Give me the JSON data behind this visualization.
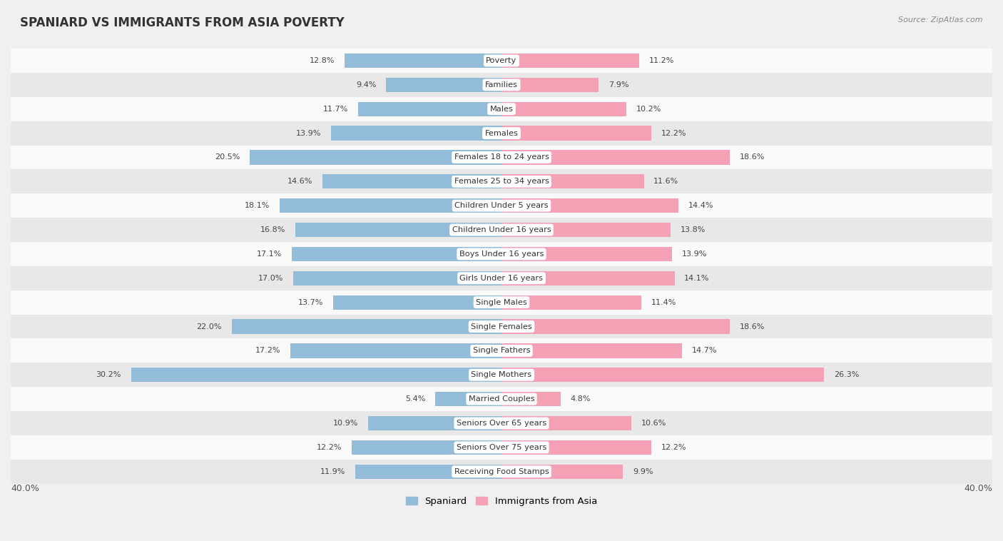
{
  "title": "SPANIARD VS IMMIGRANTS FROM ASIA POVERTY",
  "source": "Source: ZipAtlas.com",
  "categories": [
    "Poverty",
    "Families",
    "Males",
    "Females",
    "Females 18 to 24 years",
    "Females 25 to 34 years",
    "Children Under 5 years",
    "Children Under 16 years",
    "Boys Under 16 years",
    "Girls Under 16 years",
    "Single Males",
    "Single Females",
    "Single Fathers",
    "Single Mothers",
    "Married Couples",
    "Seniors Over 65 years",
    "Seniors Over 75 years",
    "Receiving Food Stamps"
  ],
  "spaniard": [
    12.8,
    9.4,
    11.7,
    13.9,
    20.5,
    14.6,
    18.1,
    16.8,
    17.1,
    17.0,
    13.7,
    22.0,
    17.2,
    30.2,
    5.4,
    10.9,
    12.2,
    11.9
  ],
  "immigrants": [
    11.2,
    7.9,
    10.2,
    12.2,
    18.6,
    11.6,
    14.4,
    13.8,
    13.9,
    14.1,
    11.4,
    18.6,
    14.7,
    26.3,
    4.8,
    10.6,
    12.2,
    9.9
  ],
  "spaniard_color": "#92bcd8",
  "immigrants_color": "#f4a0b5",
  "background_color": "#f0f0f0",
  "row_bg_light": "#fafafa",
  "row_bg_dark": "#e8e8e8",
  "axis_limit": 40.0,
  "bar_height": 0.6,
  "legend_spaniard": "Spaniard",
  "legend_immigrants": "Immigrants from Asia"
}
